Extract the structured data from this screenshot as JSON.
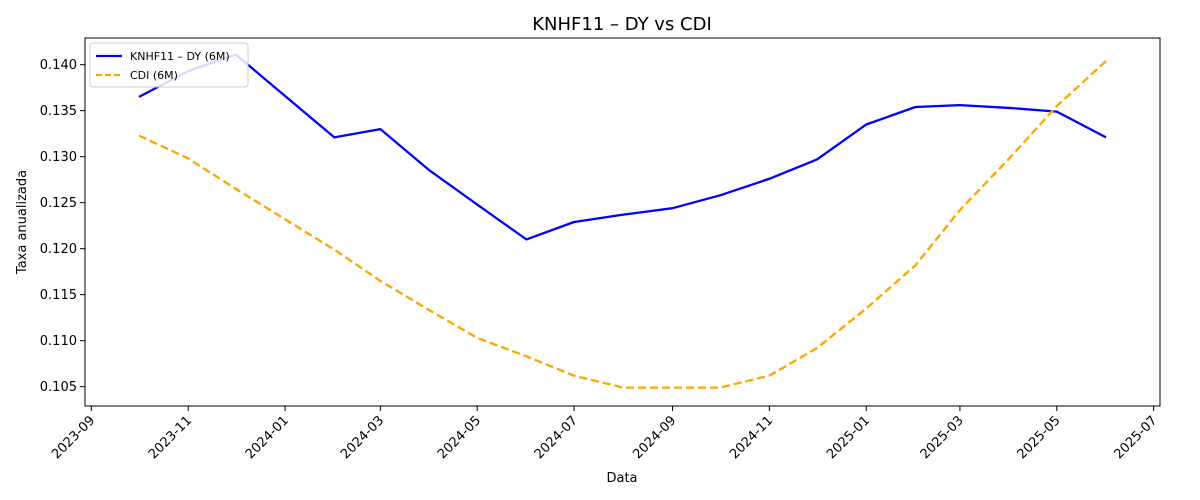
{
  "chart_data": {
    "type": "line",
    "title": "KNHF11 – DY vs CDI",
    "xlabel": "Data",
    "ylabel": "Taxa anualizada",
    "x_ticks": [
      "2023-09",
      "2023-11",
      "2024-01",
      "2024-03",
      "2024-05",
      "2024-07",
      "2024-09",
      "2024-11",
      "2025-01",
      "2025-03",
      "2025-05",
      "2025-07"
    ],
    "y_ticks": [
      "0.105",
      "0.110",
      "0.115",
      "0.120",
      "0.125",
      "0.130",
      "0.135",
      "0.140"
    ],
    "ylim": [
      0.1029,
      0.1429
    ],
    "xlim": [
      "2023-08-28",
      "2025-07-05"
    ],
    "grid": false,
    "legend_position": "top-left",
    "x": [
      "2023-10-01",
      "2023-11-01",
      "2023-12-01",
      "2024-01-01",
      "2024-02-01",
      "2024-03-01",
      "2024-04-01",
      "2024-05-01",
      "2024-06-01",
      "2024-07-01",
      "2024-08-01",
      "2024-09-01",
      "2024-10-01",
      "2024-11-01",
      "2024-12-01",
      "2025-01-01",
      "2025-02-01",
      "2025-03-01",
      "2025-04-01",
      "2025-05-01",
      "2025-06-01"
    ],
    "series": [
      {
        "name": "KNHF11 – DY (6M)",
        "color": "#0000ff",
        "style": "solid",
        "values": [
          0.1365,
          0.1393,
          0.1411,
          0.1366,
          0.1321,
          0.133,
          0.1285,
          0.1248,
          0.121,
          0.1229,
          0.1237,
          0.1244,
          0.1258,
          0.1276,
          0.1297,
          0.1335,
          0.1354,
          0.1356,
          0.1353,
          0.1349,
          0.1321
        ]
      },
      {
        "name": "CDI (6M)",
        "color": "#ffa500",
        "style": "dashed",
        "values": [
          0.1323,
          0.1298,
          0.1265,
          0.1232,
          0.1199,
          0.1165,
          0.1133,
          0.1103,
          0.1083,
          0.1062,
          0.1049,
          0.1049,
          0.1049,
          0.1062,
          0.1092,
          0.1135,
          0.1182,
          0.1242,
          0.1298,
          0.1355,
          0.1404
        ]
      }
    ]
  }
}
